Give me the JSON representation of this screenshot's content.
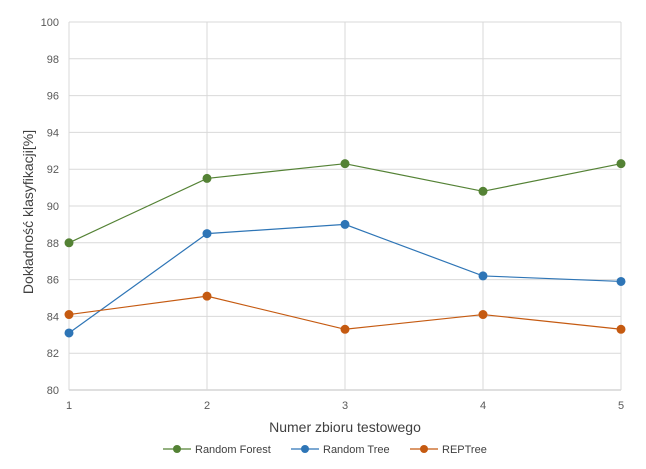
{
  "chart_data": {
    "type": "line",
    "xlabel": "Numer zbioru testowego",
    "ylabel": "Dokładność klasyfikacji[%]",
    "x": [
      1,
      2,
      3,
      4,
      5
    ],
    "ylim": [
      80,
      100
    ],
    "yticks": [
      80,
      82,
      84,
      86,
      88,
      90,
      92,
      94,
      96,
      98,
      100
    ],
    "grid": true,
    "legend_position": "bottom",
    "series": [
      {
        "name": "Random Forest",
        "color": "#548235",
        "values": [
          88.0,
          91.5,
          92.3,
          90.8,
          92.3
        ]
      },
      {
        "name": "Random Tree",
        "color": "#2e75b6",
        "values": [
          83.1,
          88.5,
          89.0,
          86.2,
          85.9
        ]
      },
      {
        "name": "REPTree",
        "color": "#c55a11",
        "values": [
          84.1,
          85.1,
          83.3,
          84.1,
          83.3
        ]
      }
    ]
  }
}
